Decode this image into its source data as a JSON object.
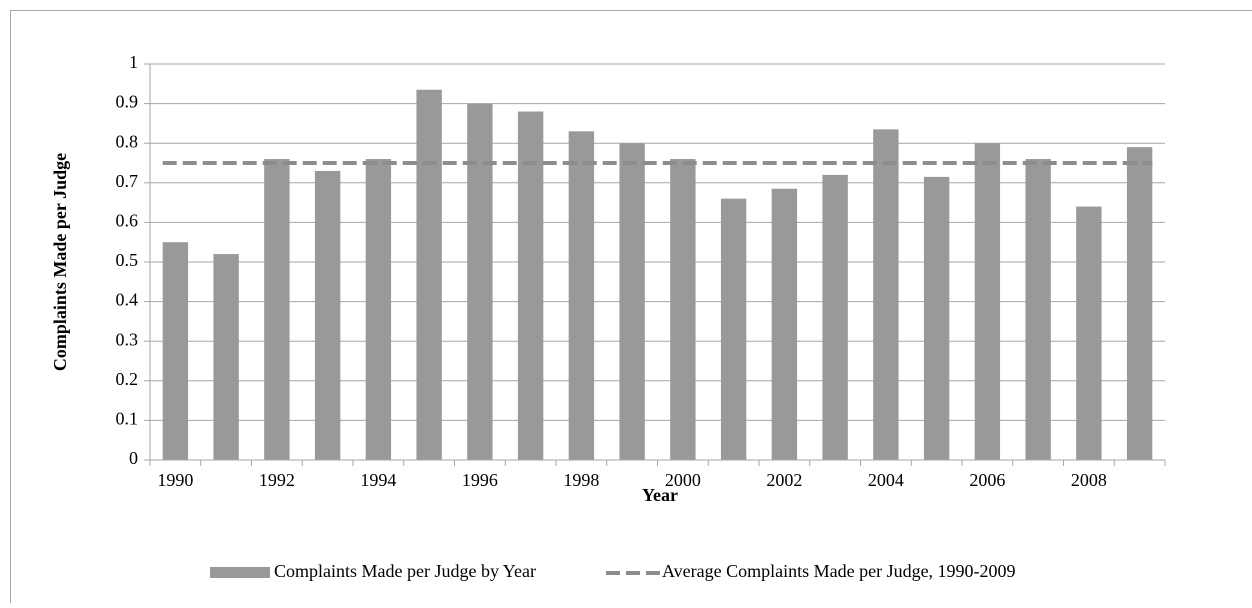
{
  "chart_data": {
    "type": "bar",
    "xlabel": "Year",
    "ylabel": "Complaints Made per Judge",
    "categories": [
      "1990",
      null,
      "1992",
      null,
      "1994",
      null,
      "1996",
      null,
      "1998",
      null,
      "2000",
      null,
      "2002",
      null,
      "2004",
      null,
      "2006",
      null,
      "2008",
      null
    ],
    "series": [
      {
        "name": "Complaints Made per Judge by Year",
        "type": "bar",
        "color": "#999999",
        "values": [
          0.55,
          0.52,
          0.76,
          0.73,
          0.76,
          0.935,
          0.9,
          0.88,
          0.83,
          0.8,
          0.76,
          0.66,
          0.685,
          0.72,
          0.835,
          0.715,
          0.8,
          0.76,
          0.64,
          0.79
        ]
      },
      {
        "name": "Average Complaints Made per Judge, 1990-2009",
        "type": "line",
        "dashed": true,
        "color": "#8c8c8c",
        "values": [
          0.75,
          0.75,
          0.75,
          0.75,
          0.75,
          0.75,
          0.75,
          0.75,
          0.75,
          0.75,
          0.75,
          0.75,
          0.75,
          0.75,
          0.75,
          0.75,
          0.75,
          0.75,
          0.75,
          0.75
        ]
      }
    ],
    "ylim": [
      0,
      1
    ],
    "yticks": [
      0,
      0.1,
      0.2,
      0.3,
      0.4,
      0.5,
      0.6,
      0.7,
      0.8,
      0.9,
      1
    ],
    "grid": true,
    "legend": "bottom"
  }
}
